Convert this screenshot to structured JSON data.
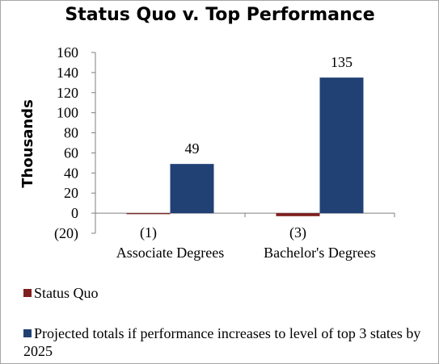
{
  "colors": {
    "status_quo": "#7f1f1f",
    "top_performance": "#214175",
    "axis": "#7f7f7f"
  },
  "chart_data": {
    "type": "bar",
    "title": "Status Quo v. Top Performance",
    "ylabel": "Thousands",
    "xlabel": "",
    "ylim": [
      -20,
      160
    ],
    "yticks": [
      -20,
      0,
      20,
      40,
      60,
      80,
      100,
      120,
      140,
      160
    ],
    "ytick_labels": [
      "(20)",
      "0",
      "20",
      "40",
      "60",
      "80",
      "100",
      "120",
      "140",
      "160"
    ],
    "grid": false,
    "legend_position": "bottom",
    "categories": [
      "Associate Degrees",
      "Bachelor's Degrees"
    ],
    "series": [
      {
        "name": "Status Quo",
        "values": [
          -1,
          -3
        ],
        "data_labels": [
          "(1)",
          "(3)"
        ]
      },
      {
        "name": "Projected totals if performance increases to level of top 3 states by 2025",
        "values": [
          49,
          135
        ],
        "data_labels": [
          "49",
          "135"
        ]
      }
    ]
  }
}
